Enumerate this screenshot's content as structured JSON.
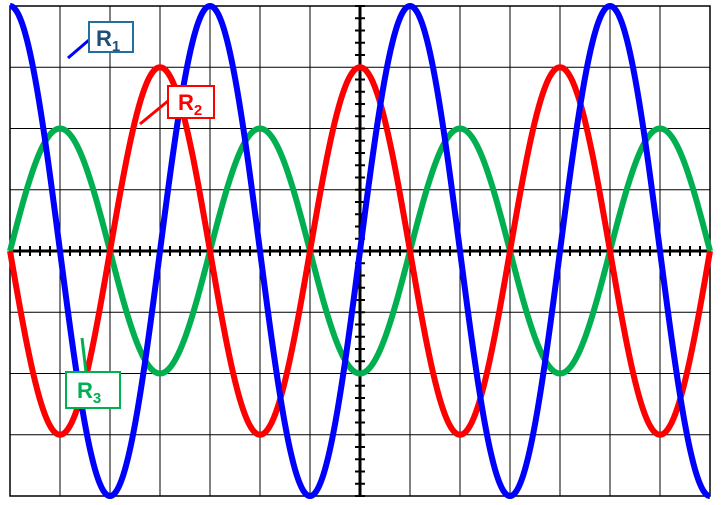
{
  "chart_data": {
    "type": "line",
    "title": "",
    "xlabel": "",
    "ylabel": "",
    "grid": true,
    "xlim": [
      -7,
      7
    ],
    "ylim": [
      -4,
      4
    ],
    "series": [
      {
        "name": "R1",
        "label_main": "R",
        "label_sub": "1",
        "color": "#0000ff",
        "amplitude": 4,
        "period": 4,
        "phase_divisions": 0
      },
      {
        "name": "R2",
        "label_main": "R",
        "label_sub": "2",
        "color": "#ff0000",
        "amplitude": 3,
        "period": 4,
        "phase_divisions": -1
      },
      {
        "name": "R3",
        "label_main": "R",
        "label_sub": "3",
        "color": "#00b050",
        "amplitude": 2,
        "period": 4,
        "phase_divisions": 1
      }
    ]
  },
  "labels": {
    "r1_main": "R",
    "r1_sub": "1",
    "r2_main": "R",
    "r2_sub": "2",
    "r3_main": "R",
    "r3_sub": "3"
  },
  "colors": {
    "r1_box_border": "#1f6f9f",
    "r1_text": "#1f4e79",
    "grid": "#000000"
  }
}
